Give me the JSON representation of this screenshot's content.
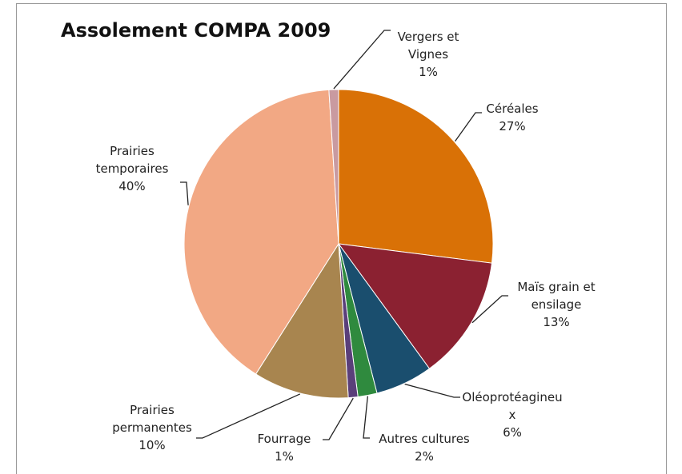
{
  "chart_data": {
    "type": "pie",
    "title": "Assolement COMPA 2009",
    "categories": [
      "Céréales",
      "Maïs grain et ensilage",
      "Oléoprotéagineux",
      "Autres cultures",
      "Fourrage",
      "Prairies permanentes",
      "Prairies temporaires",
      "Vergers et Vignes"
    ],
    "values": [
      27,
      13,
      6,
      2,
      1,
      10,
      40,
      1
    ],
    "value_labels": [
      "27%",
      "13%",
      "6%",
      "2%",
      "1%",
      "10%",
      "40%",
      "1%"
    ],
    "colors": [
      "#d97106",
      "#8b2131",
      "#1a4e6e",
      "#2f8a3e",
      "#5a3f7a",
      "#a8854f",
      "#f2a884",
      "#c99aa0"
    ]
  }
}
